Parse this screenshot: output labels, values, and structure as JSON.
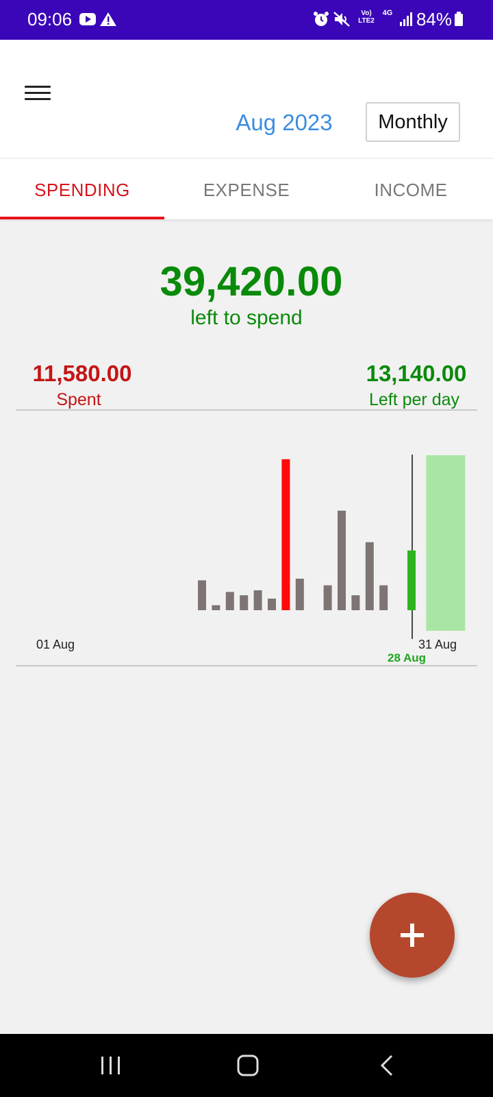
{
  "status_bar": {
    "time": "09:06",
    "battery": "84%",
    "lte_label": "Vo) LTE2",
    "network": "4G",
    "icons": [
      "youtube-icon",
      "warning-icon",
      "alarm-icon",
      "mute-icon",
      "signal-icon",
      "battery-icon"
    ]
  },
  "header": {
    "period_title": "Aug 2023",
    "period_mode": "Monthly"
  },
  "tabs": [
    {
      "label": "SPENDING",
      "active": true
    },
    {
      "label": "EXPENSE",
      "active": false
    },
    {
      "label": "INCOME",
      "active": false
    }
  ],
  "summary": {
    "left_to_spend": "39,420.00",
    "left_to_spend_label": "left to spend",
    "spent": "11,580.00",
    "spent_label": "Spent",
    "left_per_day": "13,140.00",
    "left_per_day_label": "Left per day"
  },
  "chart_data": {
    "type": "bar",
    "start_label": "01 Aug",
    "end_label": "31 Aug",
    "today_label": "28 Aug",
    "bars": [
      {
        "day": 13,
        "value": 0.18,
        "kind": "normal"
      },
      {
        "day": 14,
        "value": 0.03,
        "kind": "normal"
      },
      {
        "day": 15,
        "value": 0.11,
        "kind": "normal"
      },
      {
        "day": 16,
        "value": 0.09,
        "kind": "normal"
      },
      {
        "day": 17,
        "value": 0.12,
        "kind": "normal"
      },
      {
        "day": 18,
        "value": 0.07,
        "kind": "normal"
      },
      {
        "day": 19,
        "value": 0.91,
        "kind": "over"
      },
      {
        "day": 20,
        "value": 0.19,
        "kind": "normal"
      },
      {
        "day": 22,
        "value": 0.15,
        "kind": "normal"
      },
      {
        "day": 23,
        "value": 0.6,
        "kind": "normal"
      },
      {
        "day": 24,
        "value": 0.09,
        "kind": "normal"
      },
      {
        "day": 25,
        "value": 0.41,
        "kind": "normal"
      },
      {
        "day": 26,
        "value": 0.15,
        "kind": "normal"
      },
      {
        "day": 28,
        "value": 0.36,
        "kind": "today"
      }
    ],
    "today_day": 28,
    "remaining_budget_from_day": 29,
    "colors": {
      "normal": "#7d7473",
      "over": "#ff0a0a",
      "today": "#2db51e",
      "remaining": "#a9e6a5",
      "today_label": "#1fa51f"
    }
  },
  "fab": {
    "icon": "plus-icon"
  },
  "nav_bar": {
    "icons": [
      "recent-apps-icon",
      "home-icon",
      "back-icon"
    ]
  }
}
